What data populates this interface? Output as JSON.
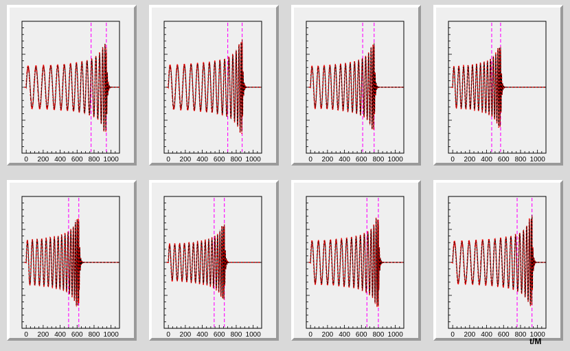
{
  "colors": {
    "waveform_numerical": "#000000",
    "waveform_model": "#ff0000",
    "window_markers": "#ff00ff"
  },
  "xlabel": "t/M",
  "chart_data": [
    {
      "type": "line",
      "x_ticks": [
        0,
        200,
        400,
        600,
        800,
        1000
      ],
      "xlim": [
        -50,
        1100
      ],
      "grid": false,
      "series": [
        {
          "t_merger": 945,
          "amp": 0.75,
          "omega": 0.049,
          "period": 95
        },
        {
          "model": "dashed"
        }
      ],
      "vlines": [
        765,
        945
      ]
    },
    {
      "type": "line",
      "x_ticks": [
        0,
        200,
        400,
        600,
        800,
        1000
      ],
      "xlim": [
        -50,
        1100
      ],
      "grid": false,
      "series": [
        {
          "t_merger": 870,
          "amp": 0.78,
          "omega": 0.049,
          "period": 88
        },
        {
          "model": "dashed"
        }
      ],
      "vlines": [
        700,
        870
      ]
    },
    {
      "type": "line",
      "x_ticks": [
        0,
        200,
        400,
        600,
        800,
        1000
      ],
      "xlim": [
        -50,
        1100
      ],
      "grid": false,
      "series": [
        {
          "t_merger": 750,
          "amp": 0.72,
          "omega": 0.05,
          "period": 75
        },
        {
          "model": "dashed"
        }
      ],
      "vlines": [
        615,
        750
      ]
    },
    {
      "type": "line",
      "x_ticks": [
        0,
        200,
        400,
        600,
        800,
        1000
      ],
      "xlim": [
        -50,
        1100
      ],
      "grid": false,
      "series": [
        {
          "t_merger": 565,
          "amp": 0.68,
          "omega": 0.05,
          "period": 60
        },
        {
          "model": "dashed"
        }
      ],
      "vlines": [
        460,
        565
      ]
    },
    {
      "type": "line",
      "x_ticks": [
        0,
        200,
        400,
        600,
        800,
        1000
      ],
      "xlim": [
        -50,
        1100
      ],
      "grid": false,
      "series": [
        {
          "t_merger": 620,
          "amp": 0.75,
          "omega": 0.05,
          "period": 60
        },
        {
          "model": "dashed"
        }
      ],
      "vlines": [
        500,
        620
      ]
    },
    {
      "type": "line",
      "x_ticks": [
        0,
        200,
        400,
        600,
        800,
        1000
      ],
      "xlim": [
        -50,
        1100
      ],
      "grid": false,
      "series": [
        {
          "t_merger": 660,
          "amp": 0.62,
          "omega": 0.05,
          "period": 62
        },
        {
          "model": "dashed"
        }
      ],
      "vlines": [
        540,
        660
      ]
    },
    {
      "type": "line",
      "x_ticks": [
        0,
        200,
        400,
        600,
        800,
        1000
      ],
      "xlim": [
        -50,
        1100
      ],
      "grid": false,
      "series": [
        {
          "t_merger": 800,
          "amp": 0.75,
          "omega": 0.05,
          "period": 77
        },
        {
          "model": "dashed"
        }
      ],
      "vlines": [
        665,
        800
      ]
    },
    {
      "type": "line",
      "x_ticks": [
        0,
        200,
        400,
        600,
        800,
        1000
      ],
      "xlim": [
        -50,
        1100
      ],
      "grid": false,
      "series": [
        {
          "t_merger": 935,
          "amp": 0.75,
          "omega": 0.049,
          "period": 90
        },
        {
          "model": "dashed"
        }
      ],
      "vlines": [
        760,
        935
      ]
    }
  ]
}
